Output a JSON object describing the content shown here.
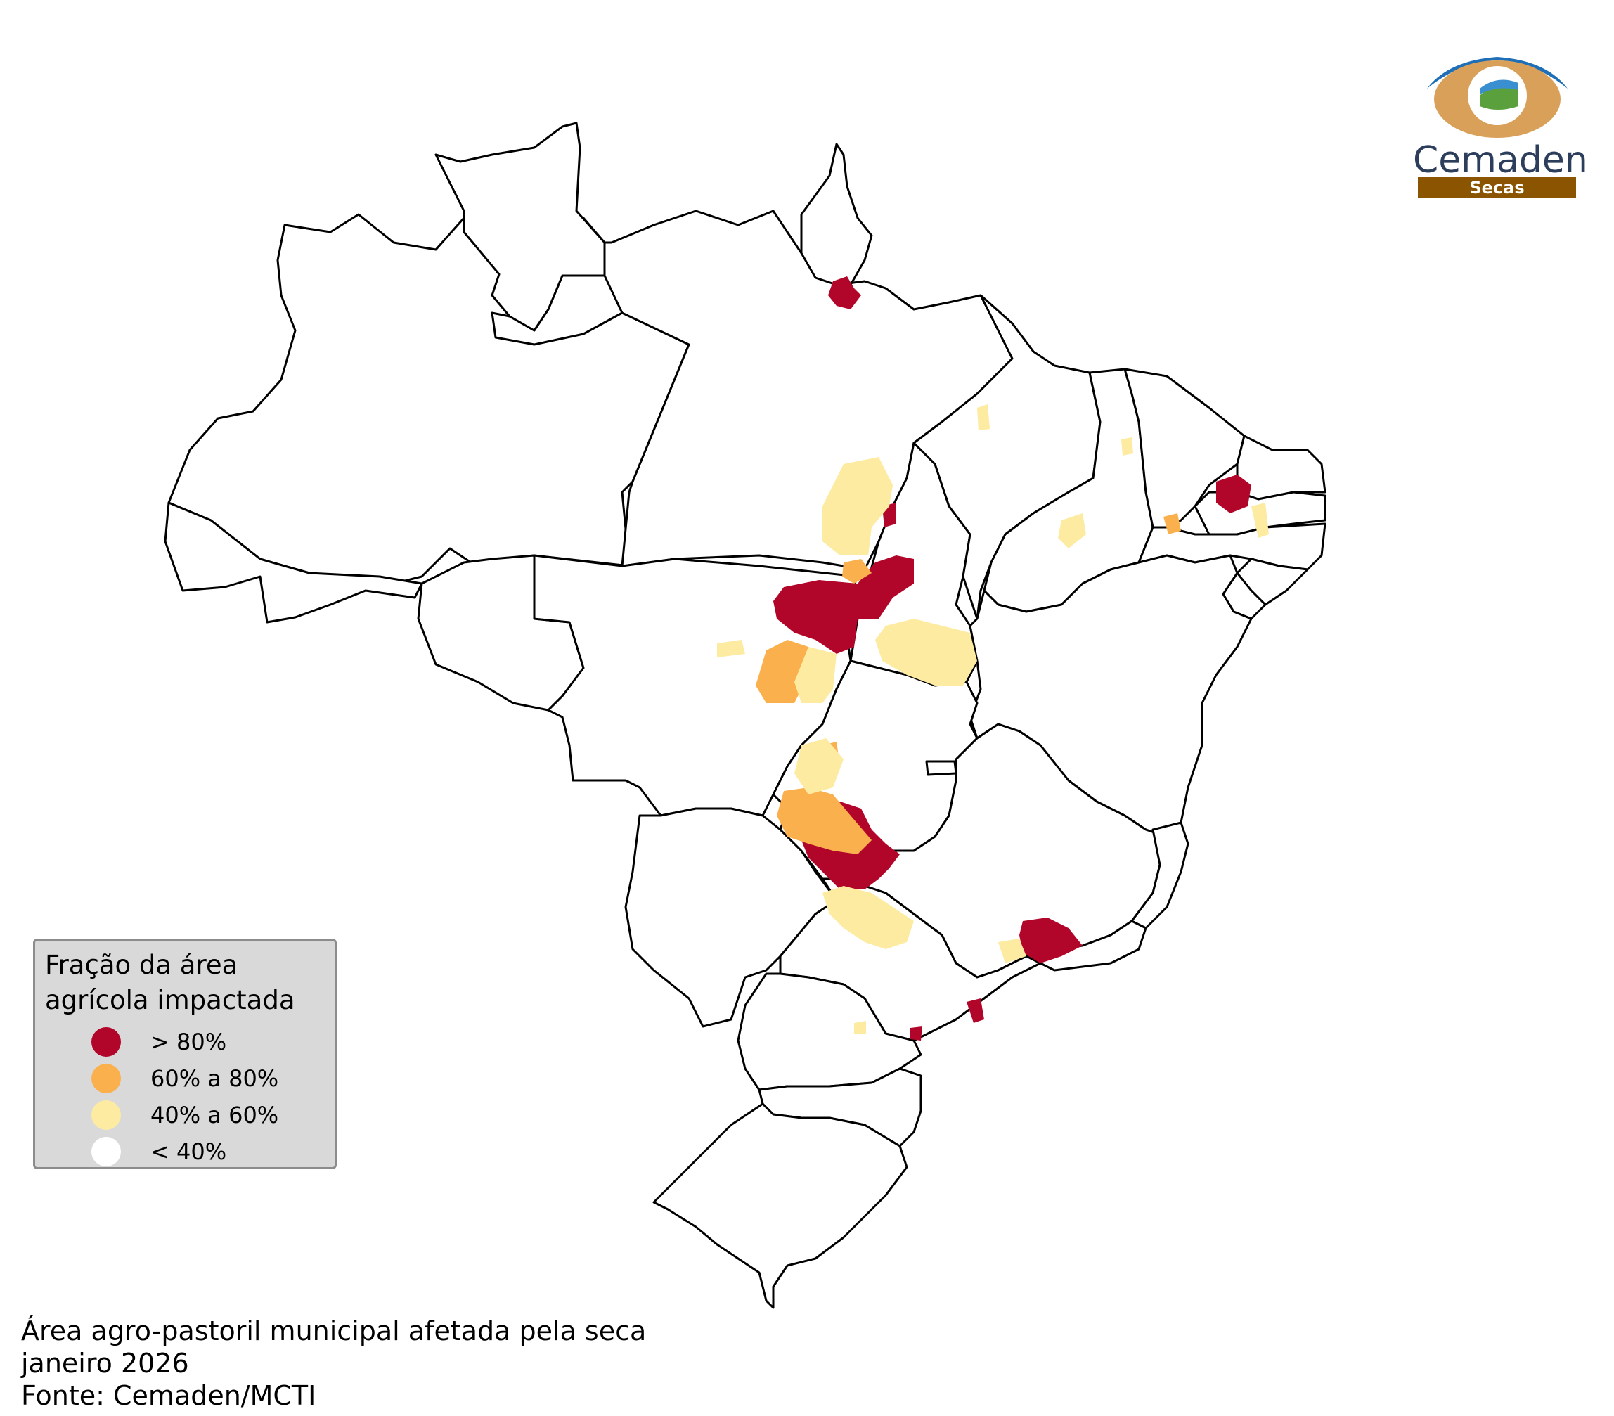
{
  "legend": {
    "title_line1": "Fração da área",
    "title_line2": "agrícola impactada",
    "classes": [
      {
        "label": "> 80%",
        "color": "#b2052a"
      },
      {
        "label": "60% a 80%",
        "color": "#fbb04e"
      },
      {
        "label": "40% a 60%",
        "color": "#fdeba1"
      },
      {
        "label": "< 40%",
        "color": "#ffffff"
      }
    ]
  },
  "caption": {
    "line1": "Área agro-pastoril municipal afetada pela seca",
    "line2": "janeiro 2026",
    "line3": "Fonte: Cemaden/MCTI"
  },
  "logo": {
    "word": "Cemaden",
    "tag": "Secas"
  }
}
